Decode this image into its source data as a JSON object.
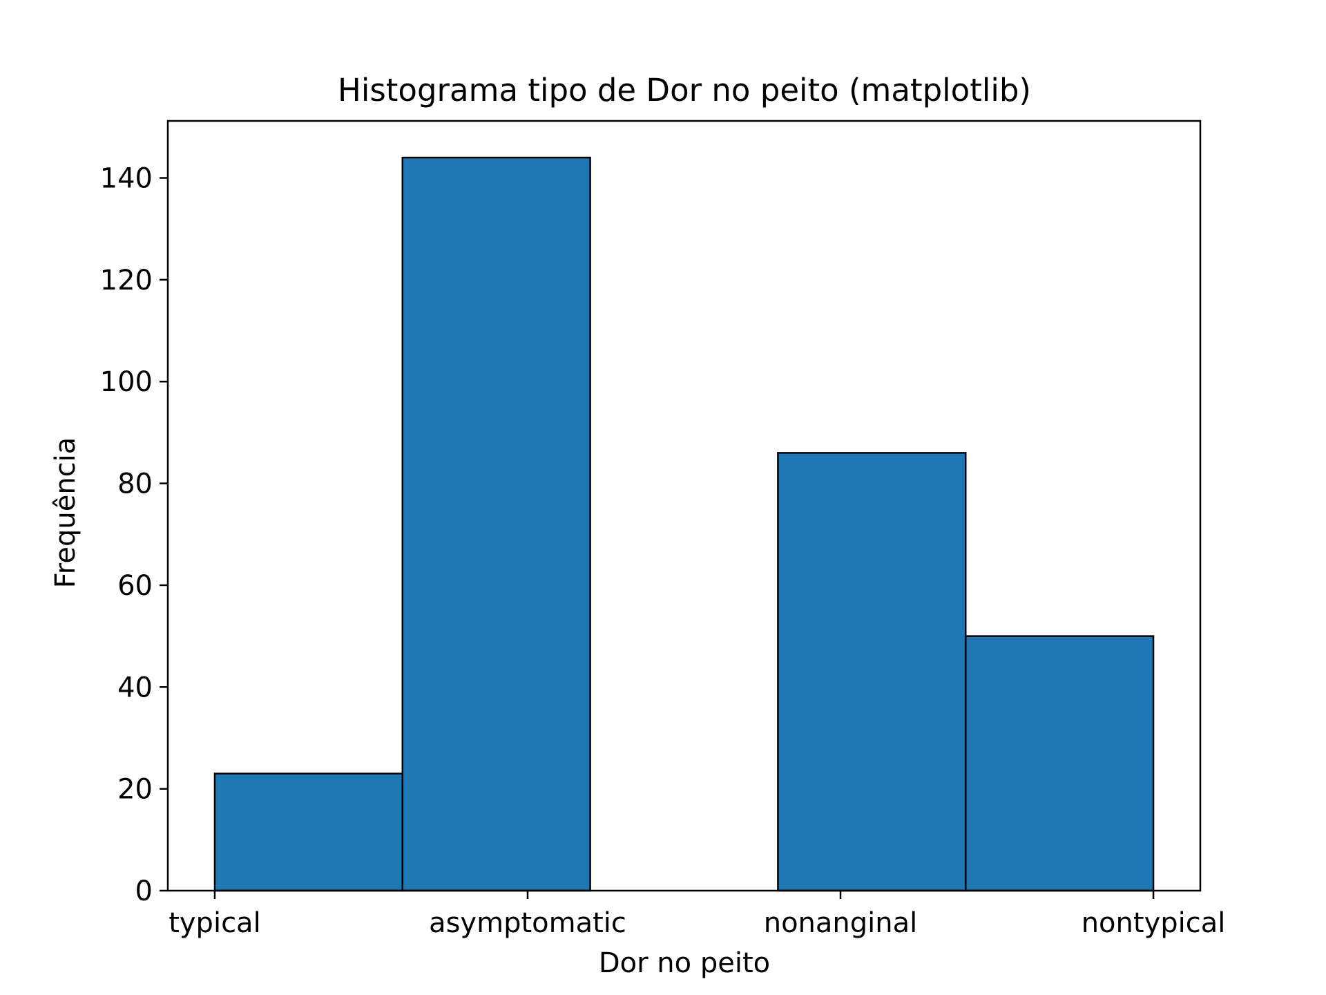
{
  "chart_data": {
    "type": "bar",
    "title": "Histograma tipo de Dor no peito (matplotlib)",
    "xlabel": "Dor no peito",
    "ylabel": "Frequência",
    "ylim": [
      0,
      151.2
    ],
    "yticks": [
      0,
      20,
      40,
      60,
      80,
      100,
      120,
      140
    ],
    "xlim": [
      -0.15,
      3.15
    ],
    "xticks": [
      {
        "label": "typical",
        "x": 0
      },
      {
        "label": "asymptomatic",
        "x": 1
      },
      {
        "label": "nonanginal",
        "x": 2
      },
      {
        "label": "nontypical",
        "x": 3
      }
    ],
    "bins": [
      {
        "x0": 0.0,
        "x1": 0.6,
        "value": 23
      },
      {
        "x0": 0.6,
        "x1": 1.2,
        "value": 144
      },
      {
        "x0": 1.2,
        "x1": 1.8,
        "value": 0
      },
      {
        "x0": 1.8,
        "x1": 2.4,
        "value": 86
      },
      {
        "x0": 2.4,
        "x1": 3.0,
        "value": 50
      }
    ],
    "bar_color": "#1f77b4",
    "edge_color": "#000000",
    "grid": false,
    "legend": null
  }
}
